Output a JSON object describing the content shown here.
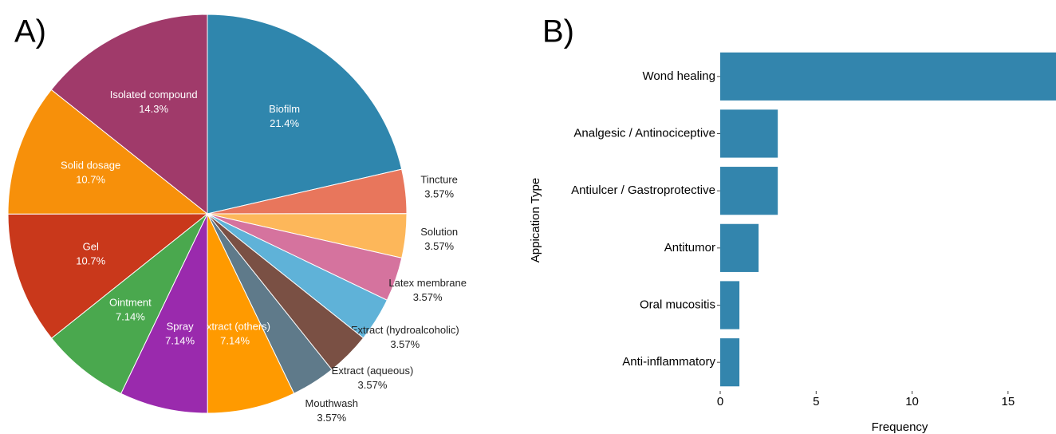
{
  "chart_data": [
    {
      "type": "pie",
      "panel": "A)",
      "categories": [
        "Biofilm",
        "Tincture",
        "Solution",
        "Latex membrane",
        "Extract (hydroalcoholic)",
        "Extract (aqueous)",
        "Mouthwash",
        "Extract (others)",
        "Spray",
        "Ointment",
        "Gel",
        "Solid dosage",
        "Isolated compound"
      ],
      "values": [
        21.4,
        3.57,
        3.57,
        3.57,
        3.57,
        3.57,
        3.57,
        7.14,
        7.14,
        7.14,
        10.7,
        10.7,
        14.3
      ],
      "value_labels": [
        "21.4%",
        "3.57%",
        "3.57%",
        "3.57%",
        "3.57%",
        "3.57%",
        "3.57%",
        "7.14%",
        "7.14%",
        "7.14%",
        "10.7%",
        "10.7%",
        "14.3%"
      ],
      "colors": [
        "#2f86ad",
        "#e8765c",
        "#fdb75a",
        "#d5739e",
        "#5fb2d8",
        "#7a5044",
        "#5f7a8a",
        "#ff9a00",
        "#9a2aad",
        "#4aa84e",
        "#c9381b",
        "#f7900a",
        "#a03a6a"
      ]
    },
    {
      "type": "hbar",
      "panel": "B)",
      "categories": [
        "Wond healing",
        "Analgesic / Antinociceptive",
        "Antiulcer / Gastroprotective",
        "Antitumor",
        "Oral mucositis",
        "Anti-inflammatory"
      ],
      "values": [
        18,
        3,
        3,
        2,
        1,
        1
      ],
      "color": "#3385ad",
      "xlim": [
        0,
        17.5
      ],
      "xticks": [
        0,
        5,
        10,
        15
      ],
      "xlabel": "Frequency",
      "ylabel": "Appication Type"
    }
  ]
}
